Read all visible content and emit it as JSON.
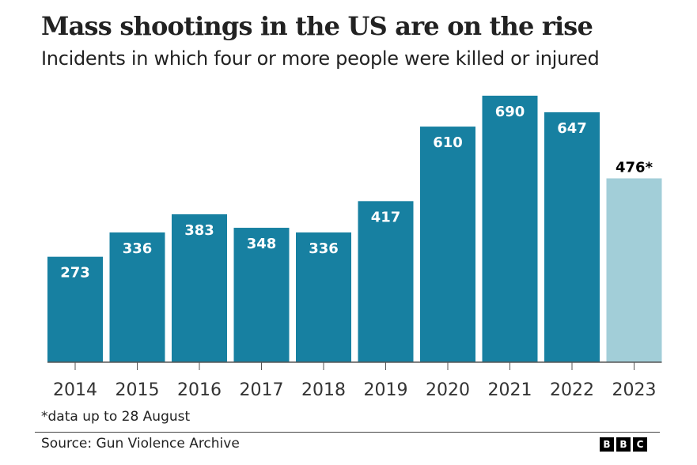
{
  "chart_data": {
    "type": "bar",
    "title": "Mass shootings in the US are on the rise",
    "subtitle": "Incidents in which four or more people were killed or injured",
    "categories": [
      "2014",
      "2015",
      "2016",
      "2017",
      "2018",
      "2019",
      "2020",
      "2021",
      "2022",
      "2023"
    ],
    "values": [
      273,
      336,
      383,
      348,
      336,
      417,
      610,
      690,
      647,
      476
    ],
    "data_labels": [
      "273",
      "336",
      "383",
      "348",
      "336",
      "417",
      "610",
      "690",
      "647",
      "476*"
    ],
    "highlight_index": 9,
    "colors": {
      "bar": "#1780a1",
      "bar_partial": "#a2ced8",
      "label_inside": "#ffffff",
      "label_outside": "#000000",
      "axis": "#555555"
    },
    "xlabel": "",
    "ylabel": "",
    "ylim": [
      0,
      690
    ],
    "grid": false,
    "legend": "none"
  },
  "footnote": "*data up to 28 August",
  "source": "Source: Gun Violence Archive",
  "logo": [
    "B",
    "B",
    "C"
  ]
}
